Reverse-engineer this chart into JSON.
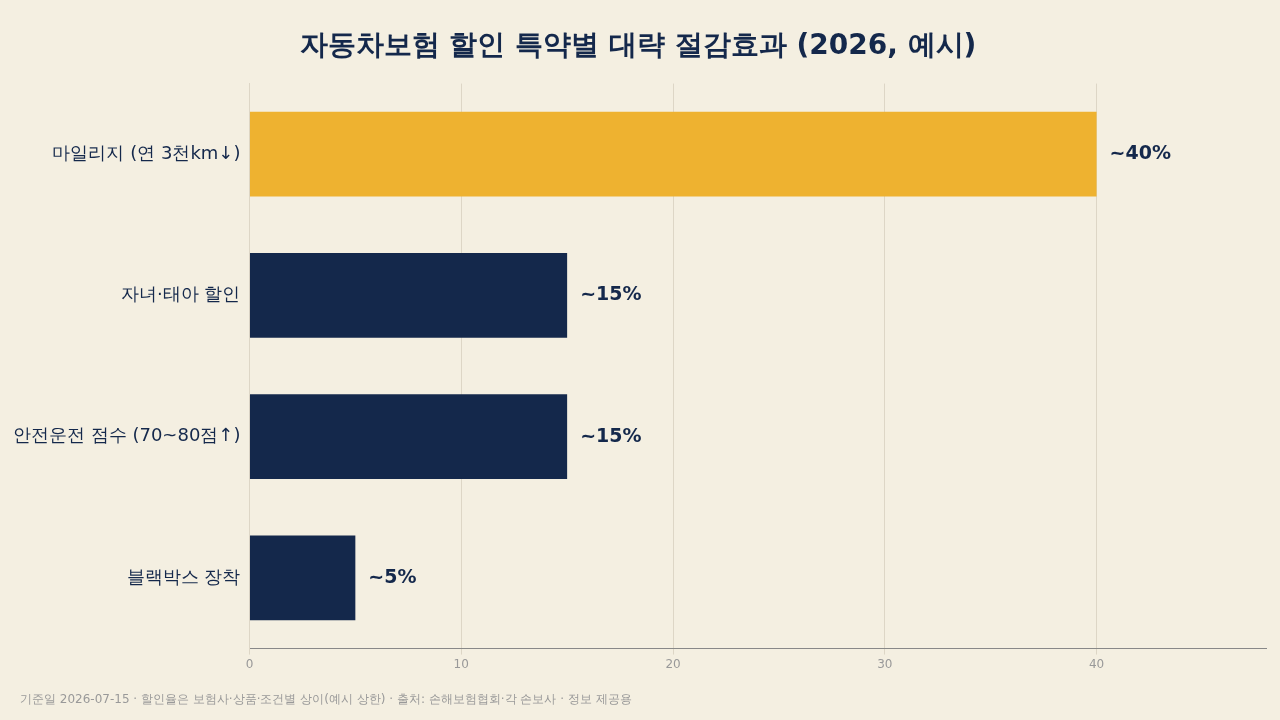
{
  "chart_data": {
    "type": "bar",
    "orientation": "horizontal",
    "title": "자동차보험 할인 특약별 대략 절감효과 (2026, 예시)",
    "categories": [
      "마일리지 (연 3천km↓)",
      "자녀·태아 할인",
      "안전운전 점수 (70~80점↑)",
      "블랙박스 장착"
    ],
    "values": [
      40,
      15,
      15,
      5
    ],
    "colors": [
      "#eeb230",
      "#14284b",
      "#14284b",
      "#14284b"
    ],
    "value_labels": [
      "~40%",
      "~15%",
      "~15%",
      "~5%"
    ],
    "xlim": [
      0,
      48
    ],
    "xticks": [
      0,
      10,
      20,
      30,
      40
    ],
    "grid": "x",
    "legend": false,
    "annotations": [
      "기준일 2026-07-15 · 할인율은 보험사·상품·조건별 상이(예시 상한) · 출처: 손해보험협회·각 손보사 · 정보 제공용"
    ]
  }
}
